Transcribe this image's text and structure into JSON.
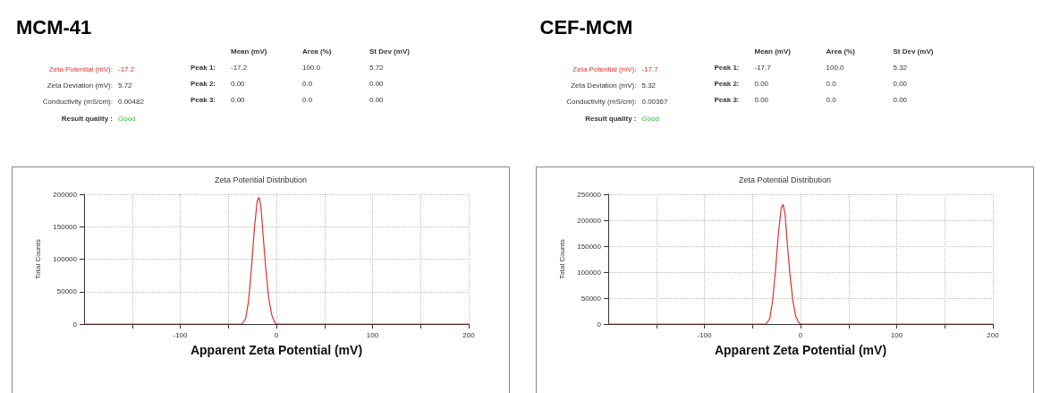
{
  "chart_data": [
    {
      "type": "line",
      "title": "MCM-41",
      "subtitle": "Zeta Potential Distribution",
      "xlabel": "Apparent Zeta Potential (mV)",
      "ylabel": "Total Counts",
      "annotations": [
        "Zeta Potential (mV):",
        "-17.2",
        "Zeta Deviation (mV):",
        "5.72",
        "Conductivity (mS/cm):",
        "0.00482",
        "Result quality :",
        "Good",
        "Mean (mV)",
        "Area (%)",
        "St Dev (mV)",
        "Peak 1:",
        "-17.2",
        "100.0",
        "5.72",
        "Peak 2:",
        "0.00",
        "0.0",
        "0.00",
        "Peak 3:",
        "0.00",
        "0.0",
        "0.00"
      ],
      "x": [
        -200,
        -36,
        -32,
        -29,
        -26,
        -23,
        -20,
        -18,
        -16,
        -14,
        -11,
        -8,
        -5,
        -2,
        0,
        200
      ],
      "series": [
        {
          "color": "#e03030",
          "values": [
            0,
            0,
            8000,
            35000,
            85000,
            145000,
            190000,
            195000,
            180000,
            140000,
            85000,
            40000,
            15000,
            3000,
            0,
            0
          ]
        }
      ],
      "xlim": [
        -200,
        200
      ],
      "xticks": [
        {
          "value": -150,
          "label": null
        },
        -100,
        {
          "value": -50,
          "label": null
        },
        0,
        {
          "value": 50,
          "label": null
        },
        100,
        {
          "value": 150,
          "label": null
        },
        200
      ],
      "ylim": [
        0,
        200000
      ],
      "yticks": [
        0,
        50000,
        100000,
        150000,
        200000
      ],
      "grid": true,
      "line_style": "solid",
      "marker": "none"
    },
    {
      "type": "line",
      "title": "CEF-MCM",
      "subtitle": "Zeta Potential Distribution",
      "xlabel": "Apparent Zeta Potential (mV)",
      "ylabel": "Total Counts",
      "annotations": [
        "Zeta Potential (mV):",
        "-17.7",
        "Zeta Deviation (mV):",
        "5.32",
        "Conductivity (mS/cm):",
        "0.00367",
        "Result quality :",
        "Good",
        "Mean (mV)",
        "Area (%)",
        "St Dev (mV)",
        "Peak 1:",
        "-17.7",
        "100.0",
        "5.32",
        "Peak 2:",
        "0.00",
        "0.0",
        "0.00",
        "Peak 3:",
        "0.00",
        "0.0",
        "0.00"
      ],
      "x": [
        -200,
        -36,
        -32,
        -29,
        -26,
        -23,
        -20,
        -18,
        -16,
        -14,
        -11,
        -8,
        -5,
        -2,
        0,
        200
      ],
      "series": [
        {
          "color": "#e03030",
          "values": [
            0,
            0,
            10000,
            45000,
            105000,
            175000,
            225000,
            230000,
            210000,
            160000,
            95000,
            45000,
            15000,
            3000,
            0,
            0
          ]
        }
      ],
      "xlim": [
        -200,
        200
      ],
      "xticks": [
        {
          "value": -150,
          "label": null
        },
        -100,
        {
          "value": -50,
          "label": null
        },
        0,
        {
          "value": 50,
          "label": null
        },
        100,
        {
          "value": 150,
          "label": null
        },
        200
      ],
      "ylim": [
        0,
        250000
      ],
      "yticks": [
        0,
        50000,
        100000,
        150000,
        200000,
        250000
      ],
      "grid": true,
      "line_style": "solid",
      "marker": "none"
    }
  ]
}
